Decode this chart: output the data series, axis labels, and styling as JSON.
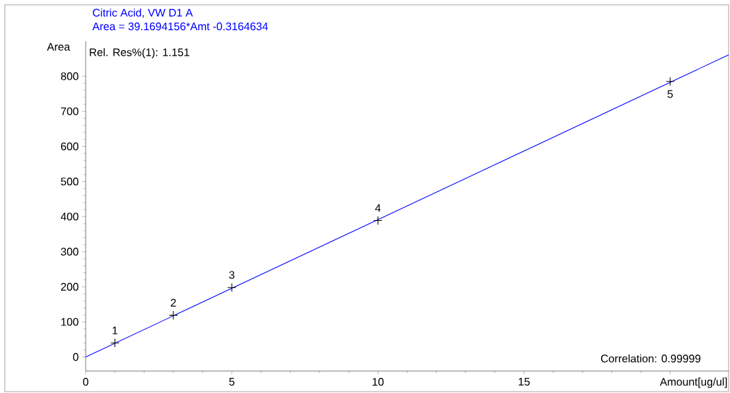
{
  "chart_data": {
    "type": "scatter",
    "title": "Citric Acid, VW D1 A",
    "subtitle": "Area = 39.1694156*Amt -0.3164634",
    "xlabel": "Amount[ug/ul]",
    "ylabel": "Area",
    "annotations": [
      "Rel. Res%(1): 1.151",
      "Correlation: 0.99999",
      {
        "text": "1",
        "x": 1,
        "y": 40
      },
      {
        "text": "2",
        "x": 3,
        "y": 119
      },
      {
        "text": "3",
        "x": 5,
        "y": 198
      },
      {
        "text": "4",
        "x": 10,
        "y": 389
      },
      {
        "text": "5",
        "x": 20,
        "y": 785
      }
    ],
    "xlim": [
      0,
      22
    ],
    "ylim": [
      -40,
      900
    ],
    "xticks": [
      0,
      5,
      10,
      15,
      {
        "value": 20,
        "label": null
      }
    ],
    "yticks": [
      0,
      100,
      200,
      300,
      400,
      500,
      600,
      700,
      800
    ],
    "marker": "cross",
    "series": [
      {
        "color": "#000000",
        "x": [
          1,
          3,
          5,
          10,
          20
        ],
        "values": [
          40,
          119,
          198,
          389,
          785
        ]
      },
      {
        "type": "line",
        "color": "#0000ff",
        "marker": "none",
        "x": [
          0,
          22
        ],
        "values": [
          0,
          861
        ]
      }
    ]
  }
}
